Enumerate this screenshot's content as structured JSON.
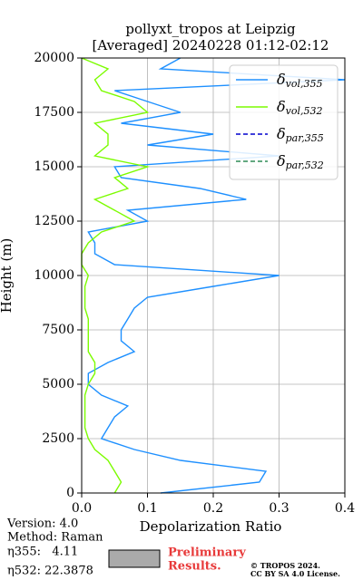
{
  "chart_data": {
    "type": "line",
    "orientation": "vertical",
    "title": [
      "pollyxt_tropos at Leipzig",
      "[Averaged] 20240228 01:12-02:12"
    ],
    "x_label": "Depolarization Ratio",
    "y_label": "Height (m)",
    "xlim": [
      0,
      0.4
    ],
    "ylim": [
      0,
      20000
    ],
    "xticks": [
      {
        "value": 0,
        "label": "0.0"
      },
      0.1,
      0.2,
      0.3,
      0.4
    ],
    "yticks": [
      0,
      2500,
      5000,
      7500,
      10000,
      12500,
      15000,
      17500,
      20000
    ],
    "grid": true,
    "legend": "upper right",
    "y": [
      0,
      500,
      1000,
      1500,
      2000,
      2500,
      3000,
      3500,
      4000,
      4500,
      5000,
      5500,
      6000,
      6500,
      7000,
      7500,
      8000,
      8500,
      9000,
      9500,
      10000,
      10500,
      11000,
      11500,
      12000,
      12500,
      13000,
      13500,
      14000,
      14500,
      15000,
      15500,
      16000,
      16500,
      17000,
      17500,
      18000,
      18500,
      19000,
      19500,
      20000
    ],
    "series": [
      {
        "name": "δ",
        "sub": "vol,355",
        "color": "#1e90ff",
        "dash": false,
        "values": [
          0.12,
          0.27,
          0.28,
          0.15,
          0.08,
          0.03,
          0.04,
          0.05,
          0.07,
          0.03,
          0.01,
          0.01,
          0.04,
          0.08,
          0.06,
          0.06,
          0.07,
          0.08,
          0.1,
          0.2,
          0.3,
          0.05,
          0.02,
          0.02,
          0.01,
          0.1,
          0.07,
          0.25,
          0.18,
          0.06,
          0.05,
          0.3,
          0.1,
          0.2,
          0.06,
          0.15,
          0.1,
          0.05,
          0.4,
          0.12,
          0.15
        ]
      },
      {
        "name": "δ",
        "sub": "vol,532",
        "color": "#7cfc00",
        "dash": false,
        "values": [
          0.05,
          0.06,
          0.05,
          0.04,
          0.02,
          0.01,
          0.005,
          0.005,
          0.005,
          0.005,
          0.01,
          0.02,
          0.02,
          0.01,
          0.01,
          0.01,
          0.01,
          0.005,
          0.005,
          0.005,
          0.01,
          0,
          0,
          0.01,
          0.03,
          0.08,
          0.05,
          0.02,
          0.07,
          0.05,
          0.1,
          0.02,
          0.04,
          0.04,
          0.02,
          0.1,
          0.08,
          0.03,
          0.02,
          0.04,
          0
        ]
      },
      {
        "name": "δ",
        "sub": "par,355",
        "color": "#0000cd",
        "dash": true,
        "values": [
          null,
          null,
          null,
          null,
          null,
          null,
          null,
          null,
          null,
          null,
          null,
          null,
          null,
          null,
          null,
          null,
          null,
          null,
          null,
          null,
          null,
          null,
          null,
          null,
          null,
          null,
          null,
          null,
          null,
          null,
          null,
          null,
          null,
          null,
          null,
          null,
          null,
          null,
          null,
          null,
          null
        ]
      },
      {
        "name": "δ",
        "sub": "par,532",
        "color": "#2e8b57",
        "dash": true,
        "values": [
          null,
          null,
          null,
          null,
          null,
          null,
          null,
          null,
          null,
          null,
          null,
          null,
          null,
          null,
          null,
          null,
          null,
          null,
          null,
          null,
          null,
          null,
          null,
          null,
          null,
          null,
          null,
          null,
          null,
          null,
          null,
          null,
          null,
          null,
          null,
          null,
          null,
          null,
          null,
          null,
          null
        ]
      }
    ],
    "footer": {
      "info": [
        "Version: 4.0",
        "Method: Raman",
        "η355:   4.11",
        "η532: 22.3878"
      ],
      "preliminary": [
        "Preliminary",
        "Results."
      ],
      "copyright": [
        "© TROPOS 2024.",
        "CC BY SA 4.0 License."
      ]
    }
  }
}
